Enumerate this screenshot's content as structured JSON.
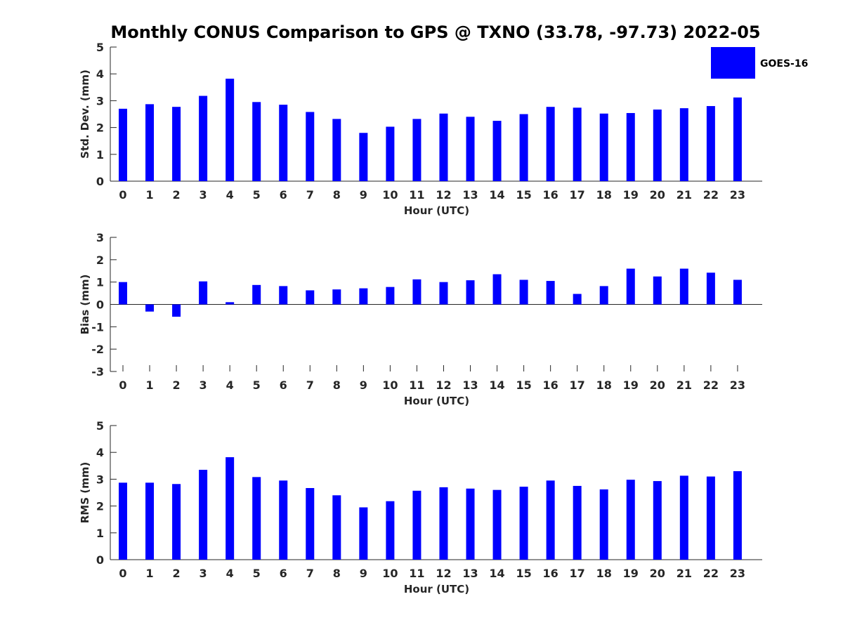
{
  "chart_data": {
    "title": "Monthly CONUS Comparison to GPS @ TXNO (33.78, -97.73) 2022-05",
    "legend": {
      "label": "GOES-16",
      "color": "#0000ff",
      "placement": "top-right"
    },
    "bar_color": "#0000ff",
    "panels": [
      {
        "type": "bar",
        "ylabel": "Std. Dev. (mm)",
        "xlabel": "Hour (UTC)",
        "ylim": [
          0,
          5
        ],
        "yticks": [
          0,
          1,
          2,
          3,
          4,
          5
        ],
        "categories": [
          "0",
          "1",
          "2",
          "3",
          "4",
          "5",
          "6",
          "7",
          "8",
          "9",
          "10",
          "11",
          "12",
          "13",
          "14",
          "15",
          "16",
          "17",
          "18",
          "19",
          "20",
          "21",
          "22",
          "23"
        ],
        "series": [
          {
            "name": "GOES-16",
            "values": [
              2.7,
              2.87,
              2.77,
              3.18,
              3.82,
              2.95,
              2.85,
              2.58,
              2.32,
              1.8,
              2.03,
              2.32,
              2.52,
              2.4,
              2.25,
              2.5,
              2.77,
              2.74,
              2.52,
              2.54,
              2.67,
              2.72,
              2.8,
              3.12
            ]
          }
        ]
      },
      {
        "type": "bar",
        "ylabel": "Bias (mm)",
        "xlabel": "Hour (UTC)",
        "ylim": [
          -3,
          3
        ],
        "yticks": [
          -3,
          -2,
          -1,
          0,
          1,
          2,
          3
        ],
        "categories": [
          "0",
          "1",
          "2",
          "3",
          "4",
          "5",
          "6",
          "7",
          "8",
          "9",
          "10",
          "11",
          "12",
          "13",
          "14",
          "15",
          "16",
          "17",
          "18",
          "19",
          "20",
          "21",
          "22",
          "23"
        ],
        "series": [
          {
            "name": "GOES-16",
            "values": [
              1.0,
              -0.32,
              -0.55,
              1.03,
              0.1,
              0.87,
              0.82,
              0.63,
              0.67,
              0.72,
              0.78,
              1.12,
              1.0,
              1.08,
              1.35,
              1.1,
              1.05,
              0.47,
              0.82,
              1.6,
              1.25,
              1.6,
              1.42,
              1.1
            ]
          }
        ]
      },
      {
        "type": "bar",
        "ylabel": "RMS (mm)",
        "xlabel": "Hour (UTC)",
        "ylim": [
          0,
          5
        ],
        "yticks": [
          0,
          1,
          2,
          3,
          4,
          5
        ],
        "categories": [
          "0",
          "1",
          "2",
          "3",
          "4",
          "5",
          "6",
          "7",
          "8",
          "9",
          "10",
          "11",
          "12",
          "13",
          "14",
          "15",
          "16",
          "17",
          "18",
          "19",
          "20",
          "21",
          "22",
          "23"
        ],
        "series": [
          {
            "name": "GOES-16",
            "values": [
              2.87,
              2.87,
              2.82,
              3.35,
              3.82,
              3.08,
              2.95,
              2.67,
              2.4,
              1.95,
              2.18,
              2.57,
              2.7,
              2.65,
              2.6,
              2.72,
              2.95,
              2.75,
              2.62,
              2.98,
              2.93,
              3.13,
              3.1,
              3.3
            ]
          }
        ]
      }
    ]
  }
}
